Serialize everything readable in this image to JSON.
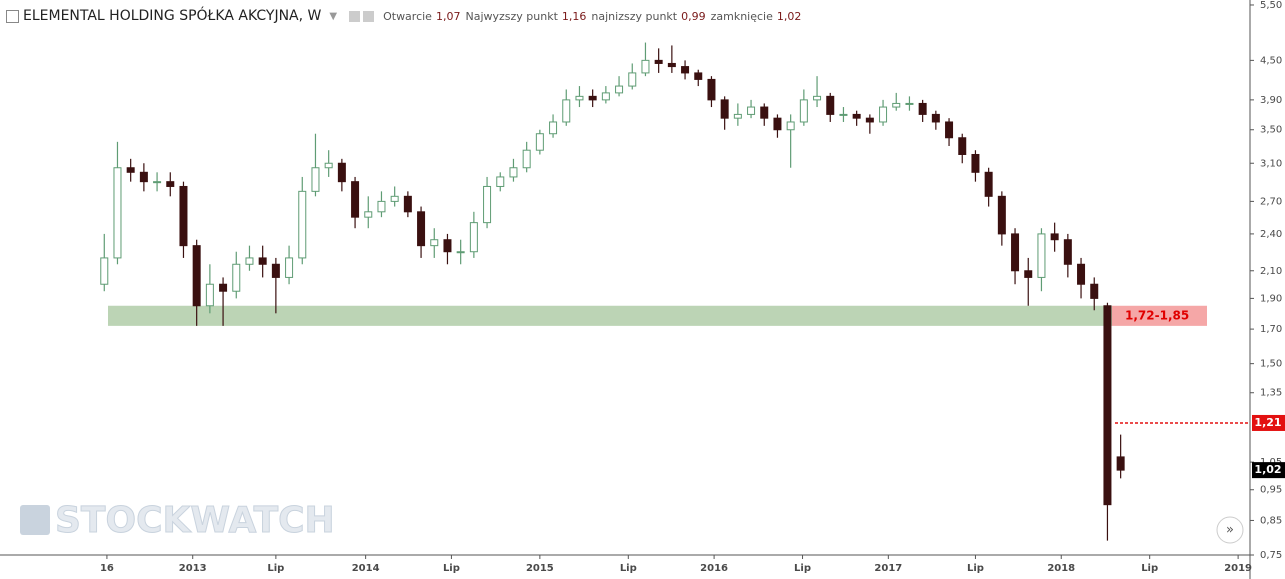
{
  "chart_data": {
    "type": "candlestick",
    "title": "ELEMENTAL HOLDING SPÓŁKA AKCYJNA, W",
    "header": [
      {
        "label": "Otwarcie",
        "value": "1,07"
      },
      {
        "label": "Najwyzszy punkt",
        "value": "1,16"
      },
      {
        "label": "najnizszy punkt",
        "value": "0,99"
      },
      {
        "label": "zamknięcie",
        "value": "1,02"
      }
    ],
    "watermark": "STOCKWATCH",
    "log_scale": true,
    "up_color": "#5f9c74",
    "down_color": "#3a1010",
    "open": [
      2.0,
      2.2,
      3.05,
      3.0,
      2.9,
      2.9,
      2.85,
      2.3,
      1.85,
      2.0,
      1.95,
      2.15,
      2.2,
      2.15,
      2.05,
      2.2,
      2.8,
      3.05,
      3.1,
      2.9,
      2.55,
      2.6,
      2.7,
      2.75,
      2.6,
      2.3,
      2.35,
      2.25,
      2.25,
      2.5,
      2.85,
      2.95,
      3.05,
      3.25,
      3.45,
      3.6,
      3.9,
      3.95,
      3.9,
      4.0,
      4.1,
      4.3,
      4.5,
      4.45,
      4.4,
      4.3,
      4.2,
      3.9,
      3.65,
      3.7,
      3.8,
      3.65,
      3.5,
      3.6,
      3.9,
      3.95,
      3.7,
      3.7,
      3.65,
      3.6,
      3.8,
      3.85,
      3.85,
      3.7,
      3.6,
      3.4,
      3.2,
      3.0,
      2.75,
      2.4,
      2.1,
      2.05,
      2.4,
      2.35,
      2.15,
      2.0,
      1.85,
      1.07
    ],
    "high": [
      2.4,
      3.35,
      3.15,
      3.1,
      3.0,
      3.0,
      2.9,
      2.35,
      2.15,
      2.05,
      2.25,
      2.3,
      2.3,
      2.2,
      2.3,
      2.95,
      3.45,
      3.25,
      3.15,
      2.95,
      2.75,
      2.8,
      2.85,
      2.8,
      2.65,
      2.45,
      2.4,
      2.35,
      2.6,
      2.95,
      3.0,
      3.15,
      3.35,
      3.5,
      3.7,
      4.05,
      4.1,
      4.05,
      4.1,
      4.25,
      4.45,
      4.8,
      4.7,
      4.75,
      4.5,
      4.35,
      4.25,
      3.95,
      3.85,
      3.9,
      3.85,
      3.7,
      3.7,
      4.05,
      4.25,
      4.0,
      3.8,
      3.75,
      3.7,
      3.9,
      4.0,
      3.95,
      3.9,
      3.75,
      3.65,
      3.45,
      3.25,
      3.05,
      2.8,
      2.45,
      2.2,
      2.45,
      2.5,
      2.4,
      2.2,
      2.05,
      1.87,
      1.16
    ],
    "low": [
      1.95,
      2.15,
      2.9,
      2.8,
      2.8,
      2.75,
      2.2,
      1.72,
      1.8,
      1.72,
      1.9,
      2.1,
      2.05,
      1.8,
      2.0,
      2.15,
      2.75,
      2.95,
      2.8,
      2.45,
      2.45,
      2.55,
      2.65,
      2.55,
      2.2,
      2.2,
      2.15,
      2.15,
      2.2,
      2.45,
      2.8,
      2.9,
      3.0,
      3.2,
      3.4,
      3.55,
      3.8,
      3.8,
      3.85,
      3.95,
      4.05,
      4.25,
      4.3,
      4.3,
      4.2,
      4.1,
      3.8,
      3.5,
      3.55,
      3.65,
      3.55,
      3.4,
      3.05,
      3.55,
      3.8,
      3.6,
      3.6,
      3.55,
      3.45,
      3.55,
      3.75,
      3.75,
      3.6,
      3.5,
      3.3,
      3.1,
      2.9,
      2.65,
      2.3,
      2.0,
      1.85,
      1.95,
      2.25,
      2.05,
      1.9,
      1.82,
      0.79,
      0.99
    ],
    "close": [
      2.2,
      3.05,
      3.0,
      2.9,
      2.9,
      2.85,
      2.3,
      1.85,
      2.0,
      1.95,
      2.15,
      2.2,
      2.15,
      2.05,
      2.2,
      2.8,
      3.05,
      3.1,
      2.9,
      2.55,
      2.6,
      2.7,
      2.75,
      2.6,
      2.3,
      2.35,
      2.25,
      2.25,
      2.5,
      2.85,
      2.95,
      3.05,
      3.25,
      3.45,
      3.6,
      3.9,
      3.95,
      3.9,
      4.0,
      4.1,
      4.3,
      4.5,
      4.45,
      4.4,
      4.3,
      4.2,
      3.9,
      3.65,
      3.7,
      3.8,
      3.65,
      3.5,
      3.6,
      3.9,
      3.95,
      3.7,
      3.7,
      3.65,
      3.6,
      3.8,
      3.85,
      3.85,
      3.7,
      3.6,
      3.4,
      3.2,
      3.0,
      2.75,
      2.4,
      2.1,
      2.05,
      2.4,
      2.35,
      2.15,
      2.0,
      1.9,
      0.9,
      1.02
    ],
    "xlim": [
      -7.9,
      86.8
    ],
    "xticks": [
      {
        "value": 0.2,
        "label": "16"
      },
      {
        "value": 6.7,
        "label": "2013"
      },
      {
        "value": 13.0,
        "label": "Lip"
      },
      {
        "value": 19.8,
        "label": "2014"
      },
      {
        "value": 26.3,
        "label": "Lip"
      },
      {
        "value": 33.0,
        "label": "2015"
      },
      {
        "value": 39.7,
        "label": "Lip"
      },
      {
        "value": 46.2,
        "label": "2016"
      },
      {
        "value": 52.9,
        "label": "Lip"
      },
      {
        "value": 59.4,
        "label": "2017"
      },
      {
        "value": 66.0,
        "label": "Lip"
      },
      {
        "value": 72.5,
        "label": "2018"
      },
      {
        "value": 79.2,
        "label": "Lip"
      },
      {
        "value": 85.9,
        "label": "2019"
      }
    ],
    "ylim": [
      0.75,
      5.6
    ],
    "yticks": [
      {
        "value": 5.5,
        "label": "5,50"
      },
      {
        "value": 4.5,
        "label": "4,50"
      },
      {
        "value": 3.9,
        "label": "3,90"
      },
      {
        "value": 3.5,
        "label": "3,50"
      },
      {
        "value": 3.1,
        "label": "3,10"
      },
      {
        "value": 2.7,
        "label": "2,70"
      },
      {
        "value": 2.4,
        "label": "2,40"
      },
      {
        "value": 2.1,
        "label": "2,10"
      },
      {
        "value": 1.9,
        "label": "1,90"
      },
      {
        "value": 1.7,
        "label": "1,70"
      },
      {
        "value": 1.5,
        "label": "1,50"
      },
      {
        "value": 1.35,
        "label": "1,35"
      },
      {
        "value": 1.05,
        "label": "1,05"
      },
      {
        "value": 0.95,
        "label": "0,95"
      },
      {
        "value": 0.85,
        "label": "0,85"
      },
      {
        "value": 0.75,
        "label": "0,75"
      }
    ],
    "zone": {
      "low": 1.72,
      "high": 1.85,
      "label": "1,72-1,85",
      "color": "#bcd4b5",
      "label_color": "#f5a7a7"
    },
    "level": {
      "value": 1.21,
      "label": "1,21",
      "color": "#e31010"
    },
    "last_price": {
      "value": 1.02,
      "label": "1,02"
    }
  }
}
